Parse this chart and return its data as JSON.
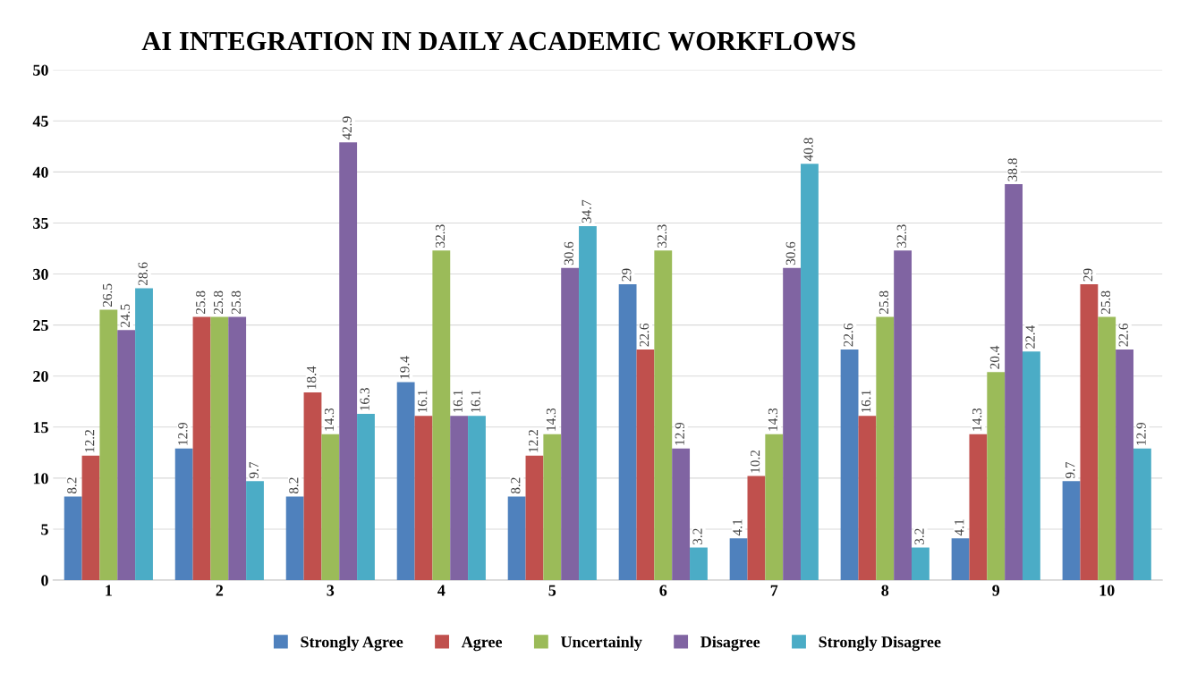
{
  "chart_data": {
    "type": "bar",
    "title": "AI INTEGRATION IN DAILY ACADEMIC WORKFLOWS",
    "categories": [
      "1",
      "2",
      "3",
      "4",
      "5",
      "6",
      "7",
      "8",
      "9",
      "10"
    ],
    "series": [
      {
        "name": "Strongly Agree",
        "color": "#4f81bd",
        "values": [
          8.2,
          12.9,
          8.2,
          19.4,
          8.2,
          29,
          4.1,
          22.6,
          4.1,
          9.7
        ]
      },
      {
        "name": "Agree",
        "color": "#c0504d",
        "values": [
          12.2,
          25.8,
          18.4,
          16.1,
          12.2,
          22.6,
          10.2,
          16.1,
          14.3,
          29
        ]
      },
      {
        "name": "Uncertainly",
        "color": "#9bbb59",
        "values": [
          26.5,
          25.8,
          14.3,
          32.3,
          14.3,
          32.3,
          14.3,
          25.8,
          20.4,
          25.8
        ]
      },
      {
        "name": "Disagree",
        "color": "#8064a2",
        "values": [
          24.5,
          25.8,
          42.9,
          16.1,
          30.6,
          12.9,
          30.6,
          32.3,
          38.8,
          22.6
        ]
      },
      {
        "name": "Strongly Disagree",
        "color": "#4bacc6",
        "values": [
          28.6,
          9.7,
          16.3,
          16.1,
          34.7,
          3.2,
          40.8,
          3.2,
          22.4,
          12.9
        ]
      }
    ],
    "ylim": [
      0,
      50
    ],
    "yticks": [
      0,
      5,
      10,
      15,
      20,
      25,
      30,
      35,
      40,
      45,
      50
    ],
    "grid": "y",
    "legend": "bottom",
    "data_labels": true
  }
}
